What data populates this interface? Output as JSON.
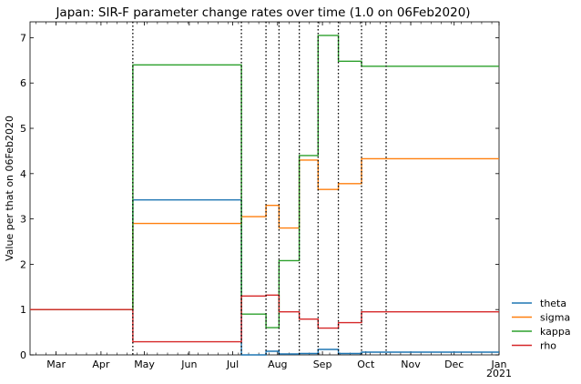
{
  "chart_data": {
    "type": "line",
    "title": "Japan: SIR-F parameter change rates over time (1.0 on 06Feb2020)",
    "xlabel": "",
    "ylabel": "Value per that on 06Feb2020",
    "xlim": [
      "2020-02-12",
      "2021-01-01"
    ],
    "ylim": [
      0,
      7.35
    ],
    "yticks": [
      0,
      1,
      2,
      3,
      4,
      5,
      6,
      7
    ],
    "xticks": [
      {
        "date": "2020-03-01",
        "label": "Mar"
      },
      {
        "date": "2020-04-01",
        "label": "Apr"
      },
      {
        "date": "2020-05-01",
        "label": "May"
      },
      {
        "date": "2020-06-01",
        "label": "Jun"
      },
      {
        "date": "2020-07-01",
        "label": "Jul"
      },
      {
        "date": "2020-08-01",
        "label": "Aug"
      },
      {
        "date": "2020-09-01",
        "label": "Sep"
      },
      {
        "date": "2020-10-01",
        "label": "Oct"
      },
      {
        "date": "2020-11-01",
        "label": "Nov"
      },
      {
        "date": "2020-12-01",
        "label": "Dec"
      },
      {
        "date": "2021-01-01",
        "label": "Jan",
        "sublabel": "2021"
      }
    ],
    "change_dates": [
      "2020-04-23",
      "2020-07-07",
      "2020-07-24",
      "2020-08-02",
      "2020-08-16",
      "2020-08-29",
      "2020-09-12",
      "2020-09-28",
      "2020-10-15"
    ],
    "series": [
      {
        "name": "theta",
        "color": "#1f77b4",
        "values": [
          1.0,
          3.42,
          0.0,
          0.08,
          0.02,
          0.03,
          0.12,
          0.03,
          0.06,
          0.06
        ]
      },
      {
        "name": "sigma",
        "color": "#ff7f0e",
        "values": [
          1.0,
          2.9,
          3.05,
          3.3,
          2.8,
          4.3,
          3.65,
          3.78,
          4.33,
          4.33
        ]
      },
      {
        "name": "kappa",
        "color": "#2ca02c",
        "values": [
          1.0,
          6.4,
          0.9,
          0.6,
          2.08,
          4.4,
          7.05,
          6.48,
          6.37,
          6.37
        ]
      },
      {
        "name": "rho",
        "color": "#d62728",
        "values": [
          1.0,
          0.29,
          1.3,
          1.32,
          0.95,
          0.79,
          0.59,
          0.71,
          0.95,
          0.95
        ]
      }
    ],
    "grid": false,
    "legend_position": "outside-right-bottom"
  }
}
